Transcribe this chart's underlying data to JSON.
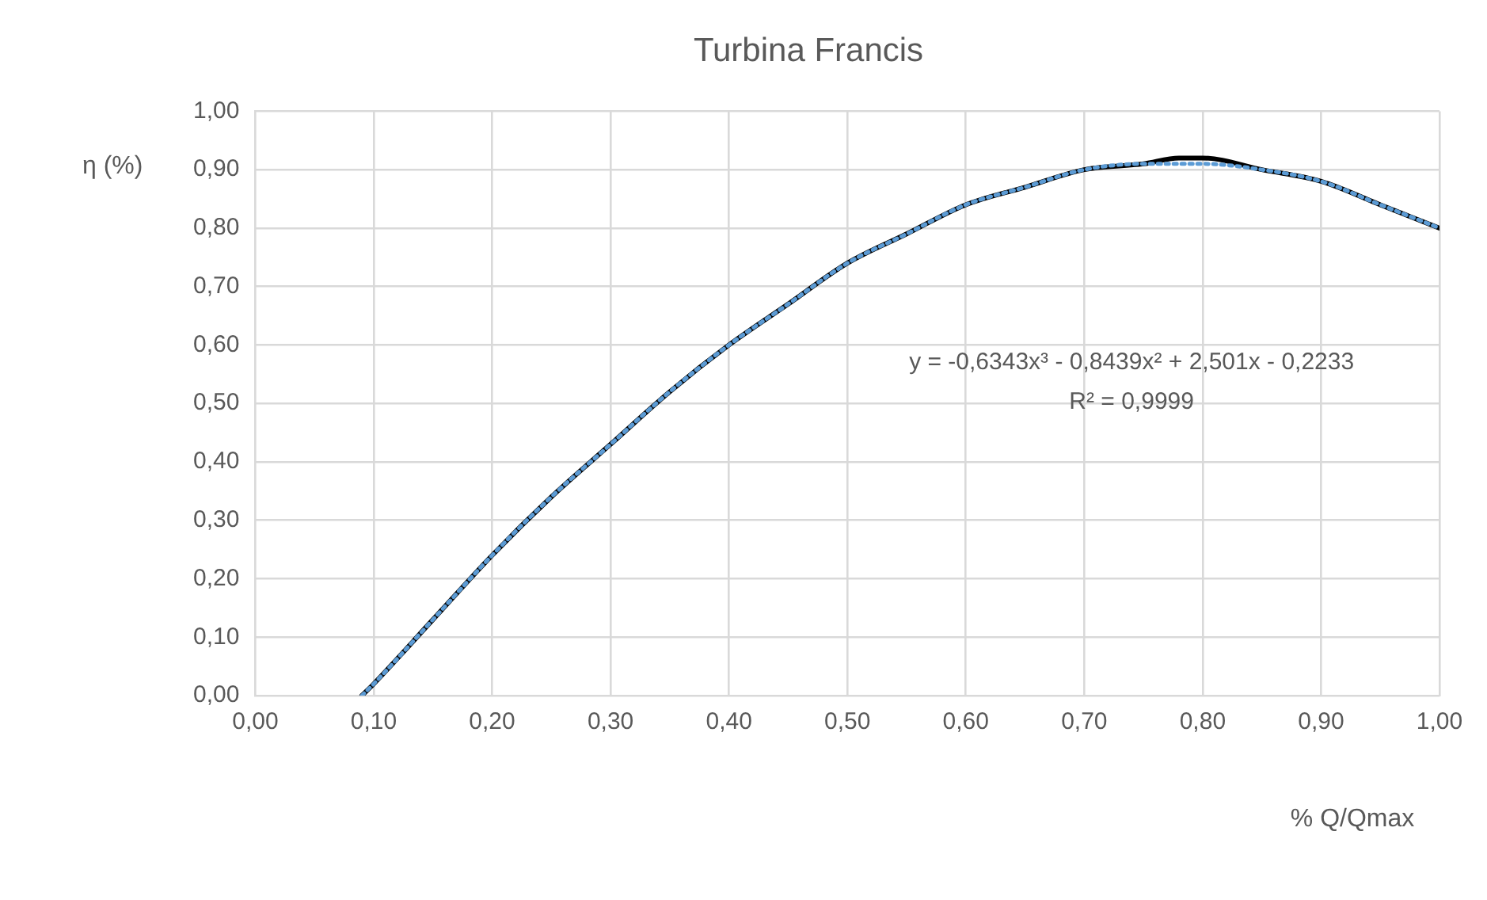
{
  "chart_data": {
    "type": "line",
    "title": "Turbina Francis",
    "xlabel": "% Q/Qmax",
    "ylabel": "η (%)",
    "annotations": [
      "y = -0,6343x³ - 0,8439x² + 2,501x - 0,2233",
      "R² = 0,9999"
    ],
    "xlim": [
      0,
      1
    ],
    "xticks": [
      {
        "value": 0,
        "label": "0,00"
      },
      {
        "value": 0.1,
        "label": "0,10"
      },
      {
        "value": 0.2,
        "label": "0,20"
      },
      {
        "value": 0.3,
        "label": "0,30"
      },
      {
        "value": 0.4,
        "label": "0,40"
      },
      {
        "value": 0.5,
        "label": "0,50"
      },
      {
        "value": 0.6,
        "label": "0,60"
      },
      {
        "value": 0.7,
        "label": "0,70"
      },
      {
        "value": 0.8,
        "label": "0,80"
      },
      {
        "value": 0.9,
        "label": "0,90"
      },
      {
        "value": 1,
        "label": "1,00"
      }
    ],
    "ylim": [
      0,
      1
    ],
    "yticks": [
      {
        "value": 0,
        "label": "0,00"
      },
      {
        "value": 0.1,
        "label": "0,10"
      },
      {
        "value": 0.2,
        "label": "0,20"
      },
      {
        "value": 0.3,
        "label": "0,30"
      },
      {
        "value": 0.4,
        "label": "0,40"
      },
      {
        "value": 0.5,
        "label": "0,50"
      },
      {
        "value": 0.6,
        "label": "0,60"
      },
      {
        "value": 0.7,
        "label": "0,70"
      },
      {
        "value": 0.8,
        "label": "0,80"
      },
      {
        "value": 0.9,
        "label": "0,90"
      },
      {
        "value": 1,
        "label": "1,00"
      }
    ],
    "grid": true,
    "legend": false,
    "marker": "none",
    "series": [
      {
        "color": "#000000",
        "line_style": "solid",
        "x": [
          0.09,
          0.1,
          0.15,
          0.2,
          0.25,
          0.3,
          0.35,
          0.4,
          0.45,
          0.5,
          0.55,
          0.6,
          0.65,
          0.7,
          0.75,
          0.78,
          0.8,
          0.85,
          0.9,
          0.95,
          1
        ],
        "values": [
          0,
          0.02,
          0.13,
          0.24,
          0.34,
          0.43,
          0.52,
          0.6,
          0.67,
          0.74,
          0.79,
          0.84,
          0.87,
          0.9,
          0.91,
          0.92,
          0.92,
          0.9,
          0.88,
          0.84,
          0.8
        ]
      },
      {
        "color": "#5b9bd5",
        "line_style": "dotted",
        "x": [
          0.09,
          0.1,
          0.15,
          0.2,
          0.25,
          0.3,
          0.35,
          0.4,
          0.45,
          0.5,
          0.55,
          0.6,
          0.65,
          0.7,
          0.75,
          0.78,
          0.8,
          0.85,
          0.9,
          0.95,
          1
        ],
        "values": [
          0,
          0.02,
          0.13,
          0.24,
          0.34,
          0.43,
          0.52,
          0.6,
          0.67,
          0.74,
          0.79,
          0.84,
          0.87,
          0.9,
          0.91,
          0.91,
          0.91,
          0.9,
          0.88,
          0.84,
          0.8
        ]
      }
    ]
  }
}
